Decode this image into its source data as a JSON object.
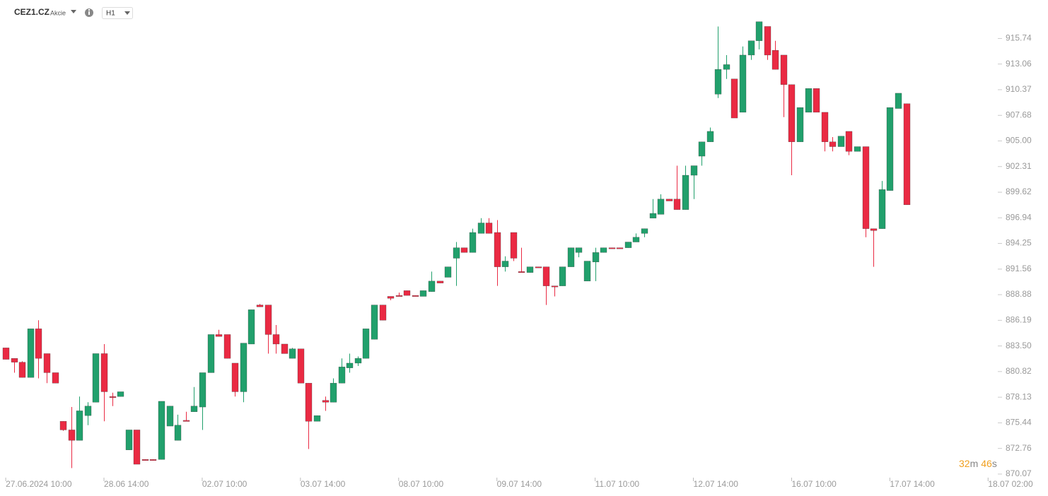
{
  "chart_data": {
    "type": "candlestick",
    "title": "CEZ1.CZ",
    "subtitle": "Akcie",
    "timeframe": "H1",
    "countdown": [
      "32",
      "m",
      "46",
      "s"
    ],
    "up_color": "#21a06c",
    "down_color": "#ea2a43",
    "xlim": [
      -0.7,
      121.1
    ],
    "xticks": [
      {
        "value": 0,
        "label": "27.06.2024 10:00"
      },
      {
        "value": 12,
        "label": "28.06 14:00"
      },
      {
        "value": 24,
        "label": "02.07 10:00"
      },
      {
        "value": 36,
        "label": "03.07 14:00"
      },
      {
        "value": 48,
        "label": "08.07 10:00"
      },
      {
        "value": 60,
        "label": "09.07 14:00"
      },
      {
        "value": 72,
        "label": "11.07 10:00"
      },
      {
        "value": 84,
        "label": "12.07 14:00"
      },
      {
        "value": 96,
        "label": "16.07 10:00"
      },
      {
        "value": 108,
        "label": "17.07 14:00"
      },
      {
        "value": 120,
        "label": "18.07 02:00"
      }
    ],
    "ylim": [
      869.4,
      917.7
    ],
    "yticks": [
      870.07,
      872.76,
      875.44,
      878.13,
      880.82,
      {
        "value": 883.5,
        "label": "883.50"
      },
      886.19,
      888.88,
      891.56,
      894.25,
      896.94,
      899.62,
      902.31,
      {
        "value": 905,
        "label": "905.00"
      },
      907.68,
      910.37,
      913.06,
      915.74
    ],
    "open": [
      883.3,
      882.2,
      881.8,
      880.2,
      885.3,
      882.7,
      880.7,
      875.6,
      874.7,
      873.6,
      876.2,
      877.6,
      882.7,
      878.2,
      878.2,
      872.6,
      874.7,
      871.6,
      871.6,
      871.6,
      875.1,
      873.6,
      875.7,
      876.6,
      877.1,
      880.7,
      884.7,
      884.7,
      881.7,
      878.7,
      883.7,
      887.8,
      887.8,
      884.7,
      883.7,
      882.2,
      883.2,
      879.6,
      875.6,
      877.8,
      877.6,
      879.6,
      881.2,
      881.7,
      882.2,
      884.2,
      887.8,
      888.7,
      888.8,
      889.3,
      888.8,
      888.7,
      889.2,
      890.3,
      890.7,
      892.7,
      893.8,
      893.3,
      895.3,
      896.4,
      895.4,
      891.8,
      895.4,
      891.3,
      891.2,
      891.8,
      891.8,
      889.8,
      889.8,
      891.8,
      893.3,
      890.3,
      892.3,
      893.3,
      893.8,
      893.8,
      893.8,
      894.4,
      895.3,
      896.9,
      897.3,
      898.9,
      898.9,
      897.8,
      901.4,
      903.4,
      904.9,
      909.9,
      912.5,
      911.5,
      908.0,
      914.0,
      915.5,
      917.0,
      914.5,
      914.0,
      910.9,
      904.9,
      908.0,
      910.5,
      908.0,
      904.9,
      904.4,
      906.0,
      903.9,
      904.4,
      895.8,
      895.8,
      899.8,
      908.4,
      908.9
    ],
    "high": [
      883.3,
      882.2,
      881.9,
      885.3,
      886.2,
      882.7,
      880.7,
      875.6,
      877.1,
      878.2,
      877.6,
      882.7,
      883.7,
      878.6,
      878.7,
      874.7,
      874.7,
      871.6,
      871.6,
      877.7,
      877.2,
      876.3,
      876.6,
      879.2,
      880.7,
      884.7,
      885.2,
      884.7,
      881.7,
      883.8,
      887.3,
      887.9,
      887.8,
      885.7,
      883.7,
      883.3,
      883.2,
      879.6,
      876.2,
      878.2,
      880.1,
      882.2,
      882.7,
      882.4,
      885.3,
      887.8,
      887.8,
      888.7,
      889.1,
      889.3,
      888.8,
      889.3,
      891.3,
      890.3,
      891.8,
      894.4,
      893.8,
      895.8,
      896.9,
      896.9,
      896.7,
      892.9,
      895.4,
      893.8,
      891.8,
      891.8,
      891.8,
      889.8,
      891.8,
      893.8,
      893.8,
      892.4,
      893.8,
      893.8,
      893.8,
      893.8,
      894.4,
      895.3,
      895.8,
      898.9,
      899.4,
      898.9,
      902.4,
      902.4,
      902.4,
      904.9,
      906.4,
      917.0,
      914.0,
      911.5,
      914.9,
      915.5,
      917.5,
      917.0,
      915.5,
      914.0,
      910.9,
      908.5,
      910.5,
      910.5,
      908.0,
      905.4,
      905.5,
      906.0,
      904.4,
      904.4,
      895.8,
      900.8,
      908.5,
      910.0,
      908.9
    ],
    "low": [
      882.1,
      880.7,
      880.2,
      880.2,
      880.1,
      879.6,
      879.6,
      874.6,
      870.7,
      873.6,
      875.2,
      877.6,
      875.6,
      877.2,
      878.2,
      872.6,
      871.1,
      871.5,
      871.5,
      871.6,
      875.1,
      873.6,
      875.6,
      876.6,
      874.7,
      880.7,
      884.5,
      882.2,
      878.2,
      877.6,
      883.7,
      887.6,
      882.7,
      882.7,
      882.7,
      882.2,
      879.6,
      872.7,
      875.6,
      876.7,
      877.6,
      879.6,
      880.7,
      881.4,
      882.2,
      884.2,
      886.2,
      888.3,
      888.7,
      888.8,
      888.7,
      888.7,
      889.2,
      890.1,
      890.7,
      889.8,
      893.3,
      893.3,
      895.3,
      895.3,
      889.8,
      891.3,
      892.4,
      891.2,
      891.2,
      891.7,
      887.8,
      888.7,
      889.8,
      891.8,
      892.8,
      890.3,
      890.3,
      893.3,
      893.7,
      893.7,
      893.8,
      894.4,
      894.9,
      896.9,
      897.3,
      898.7,
      897.8,
      897.8,
      898.9,
      902.4,
      904.9,
      909.5,
      911.5,
      907.4,
      908.0,
      913.5,
      914.6,
      913.5,
      912.5,
      907.5,
      901.4,
      904.9,
      908.0,
      908.0,
      903.9,
      903.9,
      904.4,
      903.5,
      903.9,
      894.9,
      891.8,
      895.8,
      899.8,
      908.4,
      898.3
    ],
    "close": [
      882.1,
      881.8,
      880.2,
      885.3,
      882.2,
      880.7,
      879.6,
      874.7,
      873.6,
      876.7,
      877.2,
      882.7,
      878.7,
      878.1,
      878.7,
      874.7,
      871.1,
      871.5,
      871.5,
      877.7,
      877.2,
      875.2,
      875.6,
      877.2,
      880.7,
      884.7,
      884.5,
      882.2,
      878.7,
      883.8,
      887.3,
      887.6,
      884.7,
      883.7,
      882.7,
      883.2,
      879.6,
      875.6,
      876.2,
      877.6,
      879.6,
      881.3,
      881.7,
      882.2,
      885.3,
      887.8,
      886.2,
      888.5,
      888.7,
      888.8,
      888.7,
      889.3,
      890.3,
      890.1,
      891.8,
      893.8,
      893.3,
      895.4,
      896.4,
      895.3,
      891.8,
      892.4,
      892.7,
      891.2,
      891.8,
      891.7,
      889.8,
      889.7,
      891.8,
      893.8,
      893.8,
      892.4,
      893.3,
      893.8,
      893.7,
      893.7,
      894.4,
      894.9,
      895.8,
      897.4,
      898.9,
      898.7,
      897.8,
      901.4,
      902.4,
      904.9,
      906.0,
      912.5,
      913.0,
      907.4,
      914.0,
      915.5,
      917.5,
      914.0,
      912.5,
      910.9,
      904.9,
      908.5,
      910.5,
      908.0,
      904.9,
      904.4,
      905.5,
      903.9,
      904.4,
      895.8,
      895.6,
      899.9,
      908.5,
      910.0,
      898.3
    ]
  }
}
